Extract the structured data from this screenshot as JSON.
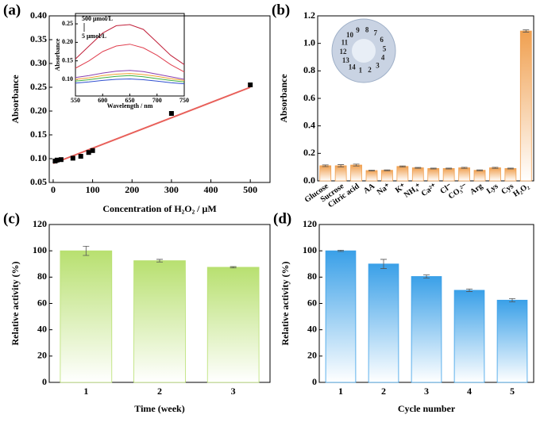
{
  "chart_data": [
    {
      "type": "scatter",
      "panel_label": "(a)",
      "xlabel": "Concentration of H₂O₂ / μM",
      "ylabel": "Absorbance",
      "x": [
        5,
        10,
        20,
        50,
        70,
        90,
        100,
        300,
        500
      ],
      "values": [
        0.095,
        0.097,
        0.098,
        0.101,
        0.105,
        0.113,
        0.117,
        0.195,
        0.255
      ],
      "color": "#000000",
      "fit": {
        "x": [
          0,
          500
        ],
        "values": [
          0.09,
          0.25
        ],
        "color": "#e8605a"
      },
      "xlim": [
        -10,
        550
      ],
      "xticks": [
        0,
        100,
        200,
        300,
        400,
        500
      ],
      "ylim": [
        0.05,
        0.4
      ],
      "yticks": [
        {
          "value": 0.05,
          "label": "0.05"
        },
        {
          "value": 0.1,
          "label": "0.10"
        },
        {
          "value": 0.15,
          "label": "0.15"
        },
        {
          "value": 0.2,
          "label": "0.20"
        },
        {
          "value": 0.25,
          "label": "0.25"
        },
        {
          "value": 0.3,
          "label": "0.30"
        },
        {
          "value": 0.35,
          "label": "0.35"
        },
        {
          "value": 0.4,
          "label": "0.40"
        }
      ],
      "inset": {
        "type": "line",
        "xlabel": "Wavelength / nm",
        "ylabel": "Absorbance",
        "annotations": [
          "500 μmol/L",
          "5 μmol/L"
        ],
        "x": [
          550,
          575,
          600,
          625,
          650,
          675,
          700,
          725,
          750
        ],
        "series": [
          {
            "color": "#c0203a",
            "values": [
              0.155,
              0.19,
              0.225,
              0.245,
              0.248,
              0.235,
              0.2,
              0.165,
              0.14
            ]
          },
          {
            "color": "#e04050",
            "values": [
              0.13,
              0.15,
              0.175,
              0.19,
              0.195,
              0.185,
              0.165,
              0.14,
              0.12
            ]
          },
          {
            "color": "#8a3fb0",
            "values": [
              0.105,
              0.11,
              0.117,
              0.122,
              0.124,
              0.121,
              0.114,
              0.107,
              0.1
            ]
          },
          {
            "color": "#f0a030",
            "values": [
              0.1,
              0.104,
              0.11,
              0.114,
              0.116,
              0.113,
              0.108,
              0.102,
              0.097
            ]
          },
          {
            "color": "#40b040",
            "values": [
              0.095,
              0.099,
              0.104,
              0.108,
              0.11,
              0.107,
              0.102,
              0.097,
              0.093
            ]
          },
          {
            "color": "#3050d0",
            "values": [
              0.09,
              0.093,
              0.097,
              0.1,
              0.101,
              0.099,
              0.095,
              0.091,
              0.088
            ]
          }
        ],
        "xlim": [
          550,
          750
        ],
        "xticks": [
          550,
          600,
          650,
          700,
          750
        ],
        "ylim": [
          0.055,
          0.278
        ],
        "yticks": [
          {
            "value": 0.1,
            "label": "0.10"
          },
          0.15,
          {
            "value": 0.2,
            "label": "0.20"
          },
          0.25
        ]
      }
    },
    {
      "type": "bar",
      "panel_label": "(b)",
      "ylabel": "Absorbance",
      "color": "#f0a050",
      "photo_labels": [
        "1",
        "2",
        "3",
        "4",
        "5",
        "6",
        "7",
        "8",
        "9",
        "10",
        "11",
        "12",
        "13",
        "14"
      ],
      "categories": [
        "Glucose",
        "Sucrose",
        "Citric acid",
        "AA",
        "Na⁺",
        "K⁺",
        "NH₄⁺",
        "Ca²⁺",
        "Cl⁻",
        "CO₃²⁻",
        "Arg",
        "Lys",
        "Cys",
        "H₂O₂"
      ],
      "values": [
        0.11,
        0.11,
        0.115,
        0.075,
        0.077,
        0.105,
        0.095,
        0.09,
        0.09,
        0.095,
        0.077,
        0.095,
        0.09,
        1.09
      ],
      "errors": [
        0.006,
        0.008,
        0.007,
        0.003,
        0.003,
        0.004,
        0.003,
        0.003,
        0.003,
        0.004,
        0.003,
        0.004,
        0.003,
        0.008
      ],
      "ylim": [
        0,
        1.2
      ],
      "yticks": [
        {
          "value": 0,
          "label": "0.0"
        },
        0.2,
        0.4,
        0.6,
        0.8,
        {
          "value": 1,
          "label": "1.0"
        },
        1.2
      ]
    },
    {
      "type": "bar",
      "panel_label": "(c)",
      "xlabel": "Time (week)",
      "ylabel": "Relative activity (%)",
      "color": "#b8e070",
      "categories": [
        "1",
        "2",
        "3"
      ],
      "values": [
        100,
        92.5,
        87.5
      ],
      "errors": [
        3.5,
        1,
        0.5
      ],
      "ylim": [
        0,
        120
      ],
      "yticks": [
        0,
        20,
        40,
        60,
        80,
        100,
        120
      ]
    },
    {
      "type": "bar",
      "panel_label": "(d)",
      "xlabel": "Cycle number",
      "ylabel": "Relative activity (%)",
      "color": "#3aa0e8",
      "categories": [
        "1",
        "2",
        "3",
        "4",
        "5"
      ],
      "values": [
        100,
        90,
        80.5,
        70,
        62.5
      ],
      "errors": [
        0.5,
        3.5,
        1.2,
        1,
        1.2
      ],
      "ylim": [
        0,
        120
      ],
      "yticks": [
        0,
        20,
        40,
        60,
        80,
        100,
        120
      ]
    }
  ]
}
